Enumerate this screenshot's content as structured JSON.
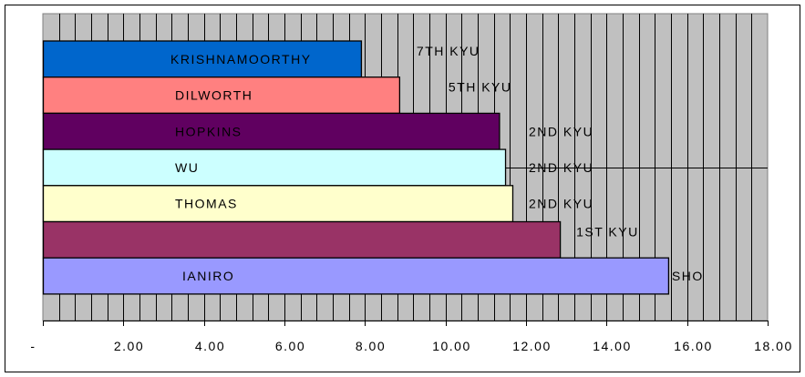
{
  "chart_data": {
    "type": "bar",
    "orientation": "horizontal",
    "title": "",
    "xlabel": "",
    "ylabel": "",
    "xlim": [
      0,
      18
    ],
    "grid": true,
    "legend": "none",
    "x_ticks": [
      "-",
      "2.00",
      "4.00",
      "6.00",
      "8.00",
      "10.00",
      "12.00",
      "14.00",
      "16.00",
      "18.00"
    ],
    "bars": [
      {
        "name": "KRISHNAMOORTHY",
        "rank": "7TH KYU",
        "value": 7.9,
        "color": "#0066cc"
      },
      {
        "name": "DILWORTH",
        "rank": "5TH KYU",
        "value": 8.85,
        "color": "#ff8080"
      },
      {
        "name": "HOPKINS",
        "rank": "2ND KYU",
        "value": 11.33,
        "color": "#600060"
      },
      {
        "name": "WU",
        "rank": "2ND KYU",
        "value": 11.48,
        "color": "#ccffff"
      },
      {
        "name": "THOMAS",
        "rank": "2ND KYU",
        "value": 11.66,
        "color": "#ffffcc"
      },
      {
        "name": "",
        "rank": "1ST KYU",
        "value": 12.84,
        "color": "#993366"
      },
      {
        "name": "IANIRO",
        "rank": "SHO",
        "value": 15.53,
        "color": "#9999ff"
      }
    ]
  }
}
